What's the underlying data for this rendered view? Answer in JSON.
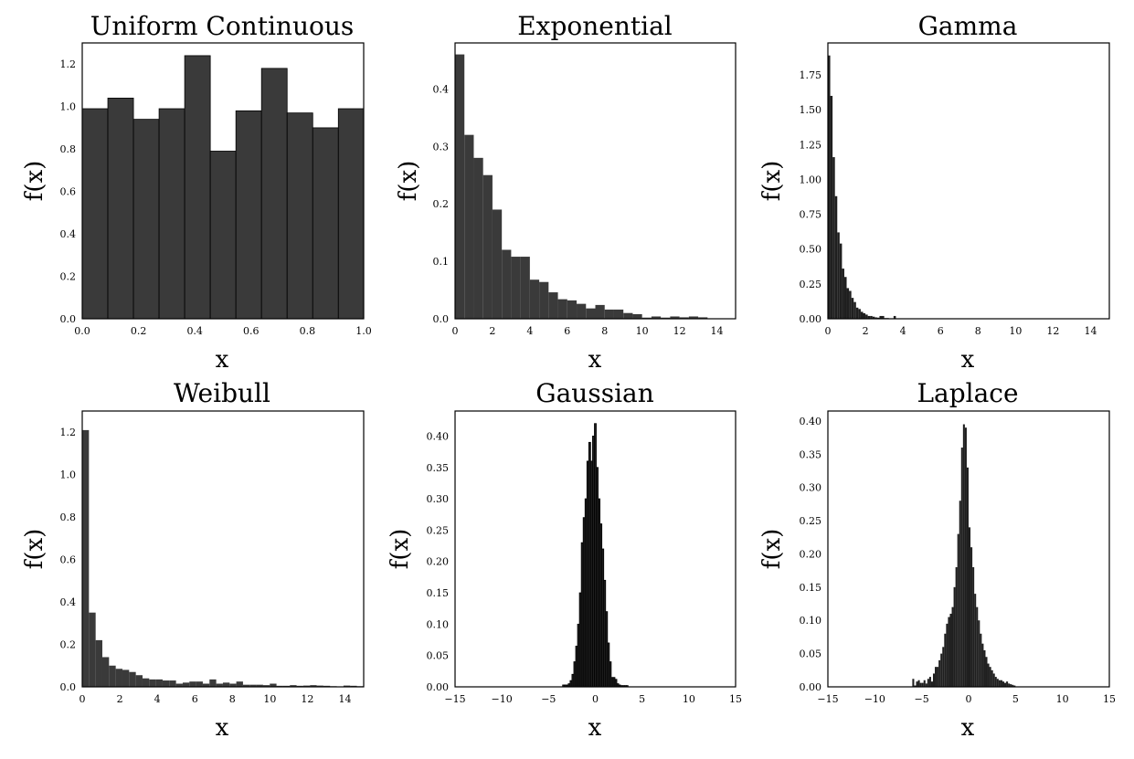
{
  "chart_data": [
    {
      "type": "bar",
      "title": "Uniform Continuous",
      "xlabel": "x",
      "ylabel": "f(x)",
      "xlim": [
        0.0,
        1.0
      ],
      "ylim": [
        0.0,
        1.3
      ],
      "xticks": [
        0.0,
        0.2,
        0.4,
        0.6,
        0.8,
        1.0
      ],
      "xtick_labels": [
        "0.0",
        "0.2",
        "0.4",
        "0.6",
        "0.8",
        "1.0"
      ],
      "yticks": [
        0.0,
        0.2,
        0.4,
        0.6,
        0.8,
        1.0,
        1.2
      ],
      "ytick_labels": [
        "0.0",
        "0.2",
        "0.4",
        "0.6",
        "0.8",
        "1.0",
        "1.2"
      ],
      "bin_edges_start": 0.0,
      "bin_width": 0.091,
      "values": [
        0.99,
        1.04,
        0.94,
        0.99,
        1.24,
        0.79,
        0.98,
        1.18,
        0.97,
        0.9,
        0.99
      ],
      "color": "#3a3a3a"
    },
    {
      "type": "bar",
      "title": "Exponential",
      "xlabel": "x",
      "ylabel": "f(x)",
      "xlim": [
        0,
        15
      ],
      "ylim": [
        0.0,
        0.48
      ],
      "xticks": [
        0,
        2,
        4,
        6,
        8,
        10,
        12,
        14
      ],
      "xtick_labels": [
        "0",
        "2",
        "4",
        "6",
        "8",
        "10",
        "12",
        "14"
      ],
      "yticks": [
        0.0,
        0.1,
        0.2,
        0.3,
        0.4
      ],
      "ytick_labels": [
        "0.0",
        "0.1",
        "0.2",
        "0.3",
        "0.4"
      ],
      "bin_edges_start": 0.0,
      "bin_width": 0.5,
      "values": [
        0.46,
        0.32,
        0.28,
        0.25,
        0.19,
        0.12,
        0.108,
        0.108,
        0.068,
        0.064,
        0.046,
        0.034,
        0.032,
        0.026,
        0.018,
        0.024,
        0.016,
        0.016,
        0.01,
        0.008,
        0.002,
        0.004,
        0.002,
        0.004,
        0.0025,
        0.004,
        0.0025,
        0.0,
        0.0,
        0.0,
        0.0
      ],
      "color": "#3a3a3a"
    },
    {
      "type": "bar",
      "title": "Gamma",
      "xlabel": "x",
      "ylabel": "f(x)",
      "xlim": [
        0,
        15
      ],
      "ylim": [
        0.0,
        1.98
      ],
      "xticks": [
        0,
        2,
        4,
        6,
        8,
        10,
        12,
        14
      ],
      "xtick_labels": [
        "0",
        "2",
        "4",
        "6",
        "8",
        "10",
        "12",
        "14"
      ],
      "yticks": [
        0.0,
        0.25,
        0.5,
        0.75,
        1.0,
        1.25,
        1.5,
        1.75
      ],
      "ytick_labels": [
        "0.00",
        "0.25",
        "0.50",
        "0.75",
        "1.00",
        "1.25",
        "1.50",
        "1.75"
      ],
      "bin_edges_start": 0.0,
      "bin_width": 0.125,
      "values": [
        1.89,
        1.6,
        1.16,
        0.88,
        0.62,
        0.54,
        0.36,
        0.3,
        0.22,
        0.2,
        0.15,
        0.12,
        0.08,
        0.07,
        0.05,
        0.04,
        0.03,
        0.02,
        0.02,
        0.015,
        0.01,
        0.008,
        0.02,
        0.02,
        0.005,
        0.005,
        0.003,
        0.003,
        0.02,
        0.0
      ],
      "color": "#1f1f1f"
    },
    {
      "type": "bar",
      "title": "Weibull",
      "xlabel": "x",
      "ylabel": "f(x)",
      "xlim": [
        0,
        15
      ],
      "ylim": [
        0.0,
        1.3
      ],
      "xticks": [
        0,
        2,
        4,
        6,
        8,
        10,
        12,
        14
      ],
      "xtick_labels": [
        "0",
        "2",
        "4",
        "6",
        "8",
        "10",
        "12",
        "14"
      ],
      "yticks": [
        0.0,
        0.2,
        0.4,
        0.6,
        0.8,
        1.0,
        1.2
      ],
      "ytick_labels": [
        "0.0",
        "0.2",
        "0.4",
        "0.6",
        "0.8",
        "1.0",
        "1.2"
      ],
      "bin_edges_start": 0.0,
      "bin_width": 0.357,
      "values": [
        1.21,
        0.35,
        0.22,
        0.14,
        0.1,
        0.085,
        0.08,
        0.07,
        0.055,
        0.04,
        0.035,
        0.035,
        0.03,
        0.03,
        0.015,
        0.02,
        0.025,
        0.025,
        0.015,
        0.035,
        0.015,
        0.02,
        0.015,
        0.025,
        0.01,
        0.01,
        0.01,
        0.008,
        0.015,
        0.005,
        0.005,
        0.008,
        0.005,
        0.006,
        0.008,
        0.006,
        0.005,
        0.003,
        0.002,
        0.006,
        0.005,
        0.003
      ],
      "color": "#3a3a3a"
    },
    {
      "type": "bar",
      "title": "Gaussian",
      "xlabel": "x",
      "ylabel": "f(x)",
      "xlim": [
        -15,
        15
      ],
      "ylim": [
        0.0,
        0.44
      ],
      "xticks": [
        -15,
        -10,
        -5,
        0,
        5,
        10,
        15
      ],
      "xtick_labels": [
        "−15",
        "−10",
        "−5",
        "0",
        "5",
        "10",
        "15"
      ],
      "yticks": [
        0.0,
        0.05,
        0.1,
        0.15,
        0.2,
        0.25,
        0.3,
        0.35,
        0.4
      ],
      "ytick_labels": [
        "0.00",
        "0.05",
        "0.10",
        "0.15",
        "0.20",
        "0.25",
        "0.30",
        "0.35",
        "0.40"
      ],
      "bin_edges_start": -3.5,
      "bin_width": 0.2,
      "values": [
        0.003,
        0.003,
        0.003,
        0.005,
        0.01,
        0.02,
        0.04,
        0.065,
        0.1,
        0.15,
        0.23,
        0.27,
        0.3,
        0.36,
        0.39,
        0.36,
        0.4,
        0.42,
        0.35,
        0.3,
        0.26,
        0.22,
        0.17,
        0.12,
        0.07,
        0.04,
        0.015,
        0.015,
        0.012,
        0.005,
        0.003,
        0.002,
        0.002,
        0.002,
        0.002
      ],
      "color": "#1f1f1f"
    },
    {
      "type": "bar",
      "title": "Laplace",
      "xlabel": "x",
      "ylabel": "f(x)",
      "xlim": [
        -15,
        15
      ],
      "ylim": [
        0.0,
        0.415
      ],
      "xticks": [
        -15,
        -10,
        -5,
        0,
        5,
        10,
        15
      ],
      "xtick_labels": [
        "−15",
        "−10",
        "−5",
        "0",
        "5",
        "10",
        "15"
      ],
      "yticks": [
        0.0,
        0.05,
        0.1,
        0.15,
        0.2,
        0.25,
        0.3,
        0.35,
        0.4
      ],
      "ytick_labels": [
        "0.00",
        "0.05",
        "0.10",
        "0.15",
        "0.20",
        "0.25",
        "0.30",
        "0.35",
        "0.40"
      ],
      "bin_edges_start": -6.0,
      "bin_width": 0.2,
      "values": [
        0.012,
        0.002,
        0.008,
        0.01,
        0.006,
        0.006,
        0.01,
        0.005,
        0.012,
        0.015,
        0.008,
        0.02,
        0.03,
        0.03,
        0.04,
        0.05,
        0.06,
        0.08,
        0.095,
        0.105,
        0.11,
        0.12,
        0.15,
        0.18,
        0.23,
        0.28,
        0.36,
        0.395,
        0.39,
        0.33,
        0.24,
        0.21,
        0.18,
        0.14,
        0.12,
        0.1,
        0.08,
        0.065,
        0.055,
        0.045,
        0.035,
        0.03,
        0.025,
        0.02,
        0.015,
        0.012,
        0.01,
        0.01,
        0.008,
        0.006,
        0.008,
        0.005,
        0.004,
        0.003,
        0.002
      ],
      "color": "#1f1f1f"
    }
  ]
}
